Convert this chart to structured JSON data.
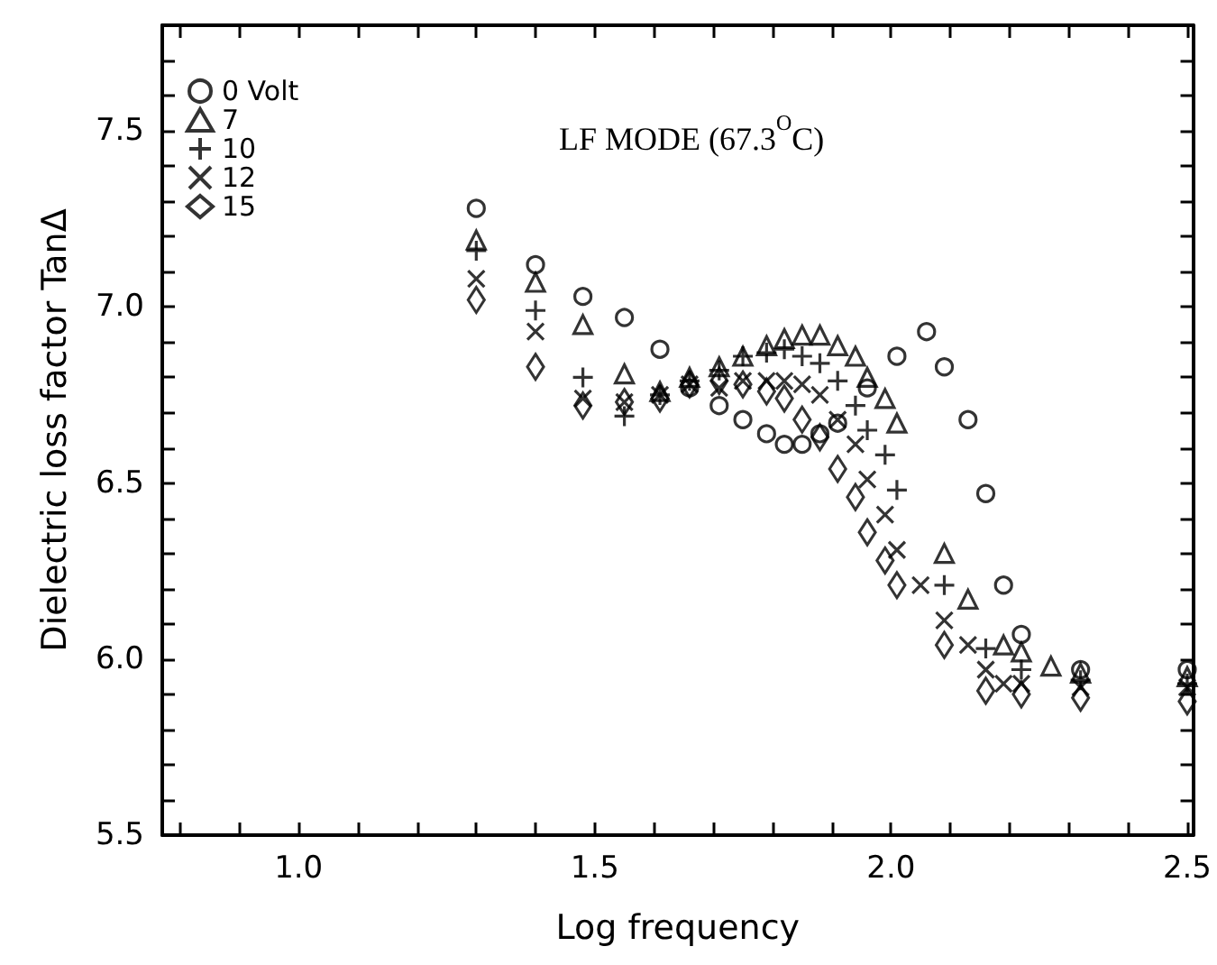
{
  "chart_data": {
    "type": "scatter",
    "xlabel": "Log frequency",
    "ylabel": "Dielectric loss factor TanΔ",
    "annotations": [
      "LF MODE (67.3$^{O}$C)"
    ],
    "xlim": [
      0.77,
      2.51
    ],
    "xticks": [
      {
        "value": 0.8,
        "label": null
      },
      {
        "value": 0.9,
        "label": null
      },
      {
        "value": 1,
        "label": "1.0"
      },
      {
        "value": 1.1,
        "label": null
      },
      {
        "value": 1.2,
        "label": null
      },
      {
        "value": 1.3,
        "label": null
      },
      {
        "value": 1.4,
        "label": null
      },
      1.5,
      {
        "value": 1.6,
        "label": null
      },
      {
        "value": 1.7,
        "label": null
      },
      {
        "value": 1.8,
        "label": null
      },
      {
        "value": 1.9,
        "label": null
      },
      {
        "value": 2,
        "label": "2.0"
      },
      {
        "value": 2.1,
        "label": null
      },
      {
        "value": 2.2,
        "label": null
      },
      {
        "value": 2.3,
        "label": null
      },
      {
        "value": 2.4,
        "label": null
      },
      2.5
    ],
    "ylim": [
      5.5,
      7.8
    ],
    "yticks": [
      5.5,
      {
        "value": 5.6,
        "label": null
      },
      {
        "value": 5.7,
        "label": null
      },
      {
        "value": 5.8,
        "label": null
      },
      {
        "value": 5.9,
        "label": null
      },
      {
        "value": 6,
        "label": "6.0"
      },
      {
        "value": 6.1,
        "label": null
      },
      {
        "value": 6.2,
        "label": null
      },
      {
        "value": 6.3,
        "label": null
      },
      {
        "value": 6.4,
        "label": null
      },
      6.5,
      {
        "value": 6.6,
        "label": null
      },
      {
        "value": 6.7,
        "label": null
      },
      {
        "value": 6.8,
        "label": null
      },
      {
        "value": 6.9,
        "label": null
      },
      {
        "value": 7,
        "label": "7.0"
      },
      {
        "value": 7.1,
        "label": null
      },
      {
        "value": 7.2,
        "label": null
      },
      {
        "value": 7.3,
        "label": null
      },
      {
        "value": 7.4,
        "label": null
      },
      7.5,
      {
        "value": 7.6,
        "label": null
      },
      {
        "value": 7.7,
        "label": null
      }
    ],
    "grid": false,
    "legend": "top left",
    "series": [
      {
        "name": "0 Volt",
        "color": "#000000",
        "marker": "circle",
        "x": [
          1.3,
          1.4,
          1.48,
          1.55,
          1.61,
          1.66,
          1.71,
          1.75,
          1.79,
          1.82,
          1.85,
          1.88,
          1.91,
          1.96,
          2.01,
          2.06,
          2.09,
          2.13,
          2.16,
          2.19,
          2.22,
          2.32,
          2.5
        ],
        "values": [
          7.28,
          7.12,
          7.03,
          6.97,
          6.88,
          6.77,
          6.72,
          6.68,
          6.64,
          6.61,
          6.61,
          6.64,
          6.67,
          6.77,
          6.86,
          6.93,
          6.83,
          6.68,
          6.47,
          6.21,
          6.07,
          5.97,
          5.97
        ]
      },
      {
        "name": "7",
        "color": "#000000",
        "marker": "triangle",
        "x": [
          1.3,
          1.4,
          1.48,
          1.55,
          1.61,
          1.66,
          1.71,
          1.75,
          1.79,
          1.82,
          1.85,
          1.88,
          1.91,
          1.94,
          1.96,
          1.99,
          2.01,
          2.09,
          2.13,
          2.19,
          2.22,
          2.27,
          2.32,
          2.5
        ],
        "values": [
          7.19,
          7.07,
          6.95,
          6.81,
          6.76,
          6.8,
          6.83,
          6.86,
          6.89,
          6.91,
          6.92,
          6.92,
          6.89,
          6.86,
          6.8,
          6.74,
          6.67,
          6.3,
          6.17,
          6.04,
          6.02,
          5.98,
          5.96,
          5.95
        ]
      },
      {
        "name": "10",
        "color": "#000000",
        "marker": "plus",
        "x": [
          1.3,
          1.4,
          1.48,
          1.55,
          1.61,
          1.66,
          1.71,
          1.75,
          1.79,
          1.82,
          1.85,
          1.88,
          1.91,
          1.94,
          1.96,
          1.99,
          2.01,
          2.09,
          2.16,
          2.22,
          2.32,
          2.5
        ],
        "values": [
          7.16,
          6.99,
          6.8,
          6.69,
          6.75,
          6.79,
          6.82,
          6.86,
          6.87,
          6.88,
          6.86,
          6.84,
          6.79,
          6.72,
          6.65,
          6.58,
          6.48,
          6.21,
          6.03,
          5.97,
          5.94,
          5.93
        ]
      },
      {
        "name": "12",
        "color": "#000000",
        "marker": "cross",
        "x": [
          1.3,
          1.4,
          1.48,
          1.55,
          1.61,
          1.66,
          1.71,
          1.75,
          1.79,
          1.82,
          1.85,
          1.88,
          1.91,
          1.94,
          1.96,
          1.99,
          2.01,
          2.05,
          2.09,
          2.13,
          2.16,
          2.19,
          2.22,
          2.32,
          2.5
        ],
        "values": [
          7.08,
          6.93,
          6.74,
          6.73,
          6.75,
          6.78,
          6.77,
          6.79,
          6.79,
          6.79,
          6.78,
          6.75,
          6.68,
          6.61,
          6.51,
          6.41,
          6.31,
          6.21,
          6.11,
          6.04,
          5.97,
          5.93,
          5.93,
          5.92,
          5.92
        ]
      },
      {
        "name": "15",
        "color": "#000000",
        "marker": "diamond",
        "x": [
          1.3,
          1.4,
          1.48,
          1.55,
          1.61,
          1.66,
          1.71,
          1.75,
          1.79,
          1.82,
          1.85,
          1.88,
          1.91,
          1.94,
          1.96,
          1.99,
          2.01,
          2.09,
          2.16,
          2.22,
          2.32,
          2.5
        ],
        "values": [
          7.02,
          6.83,
          6.72,
          6.73,
          6.74,
          6.78,
          6.79,
          6.78,
          6.76,
          6.74,
          6.68,
          6.63,
          6.54,
          6.46,
          6.36,
          6.28,
          6.21,
          6.04,
          5.91,
          5.9,
          5.89,
          5.88
        ]
      }
    ]
  }
}
